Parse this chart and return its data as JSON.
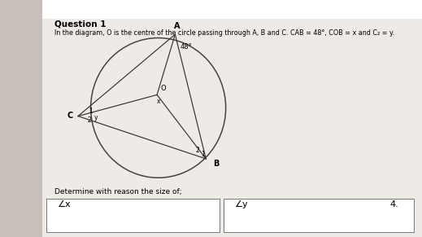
{
  "title": "Question 1",
  "subtitle": "In the diagram, O is the centre of the circle passing through A, B and C. CAB = 48°, COB = x and C₂ = y.",
  "bg_color": "#c8bfbb",
  "paper_color": "#eeebe7",
  "white_color": "#ffffff",
  "text_color": "#000000",
  "angle_A_label": "48°",
  "O_label": "O",
  "A_label": "A",
  "B_label": "B",
  "C_label": "C",
  "footer_left": "∠x",
  "footer_right": "∠y",
  "footer_right_num": "4.",
  "determine_text": "Determine with reason the size of;"
}
